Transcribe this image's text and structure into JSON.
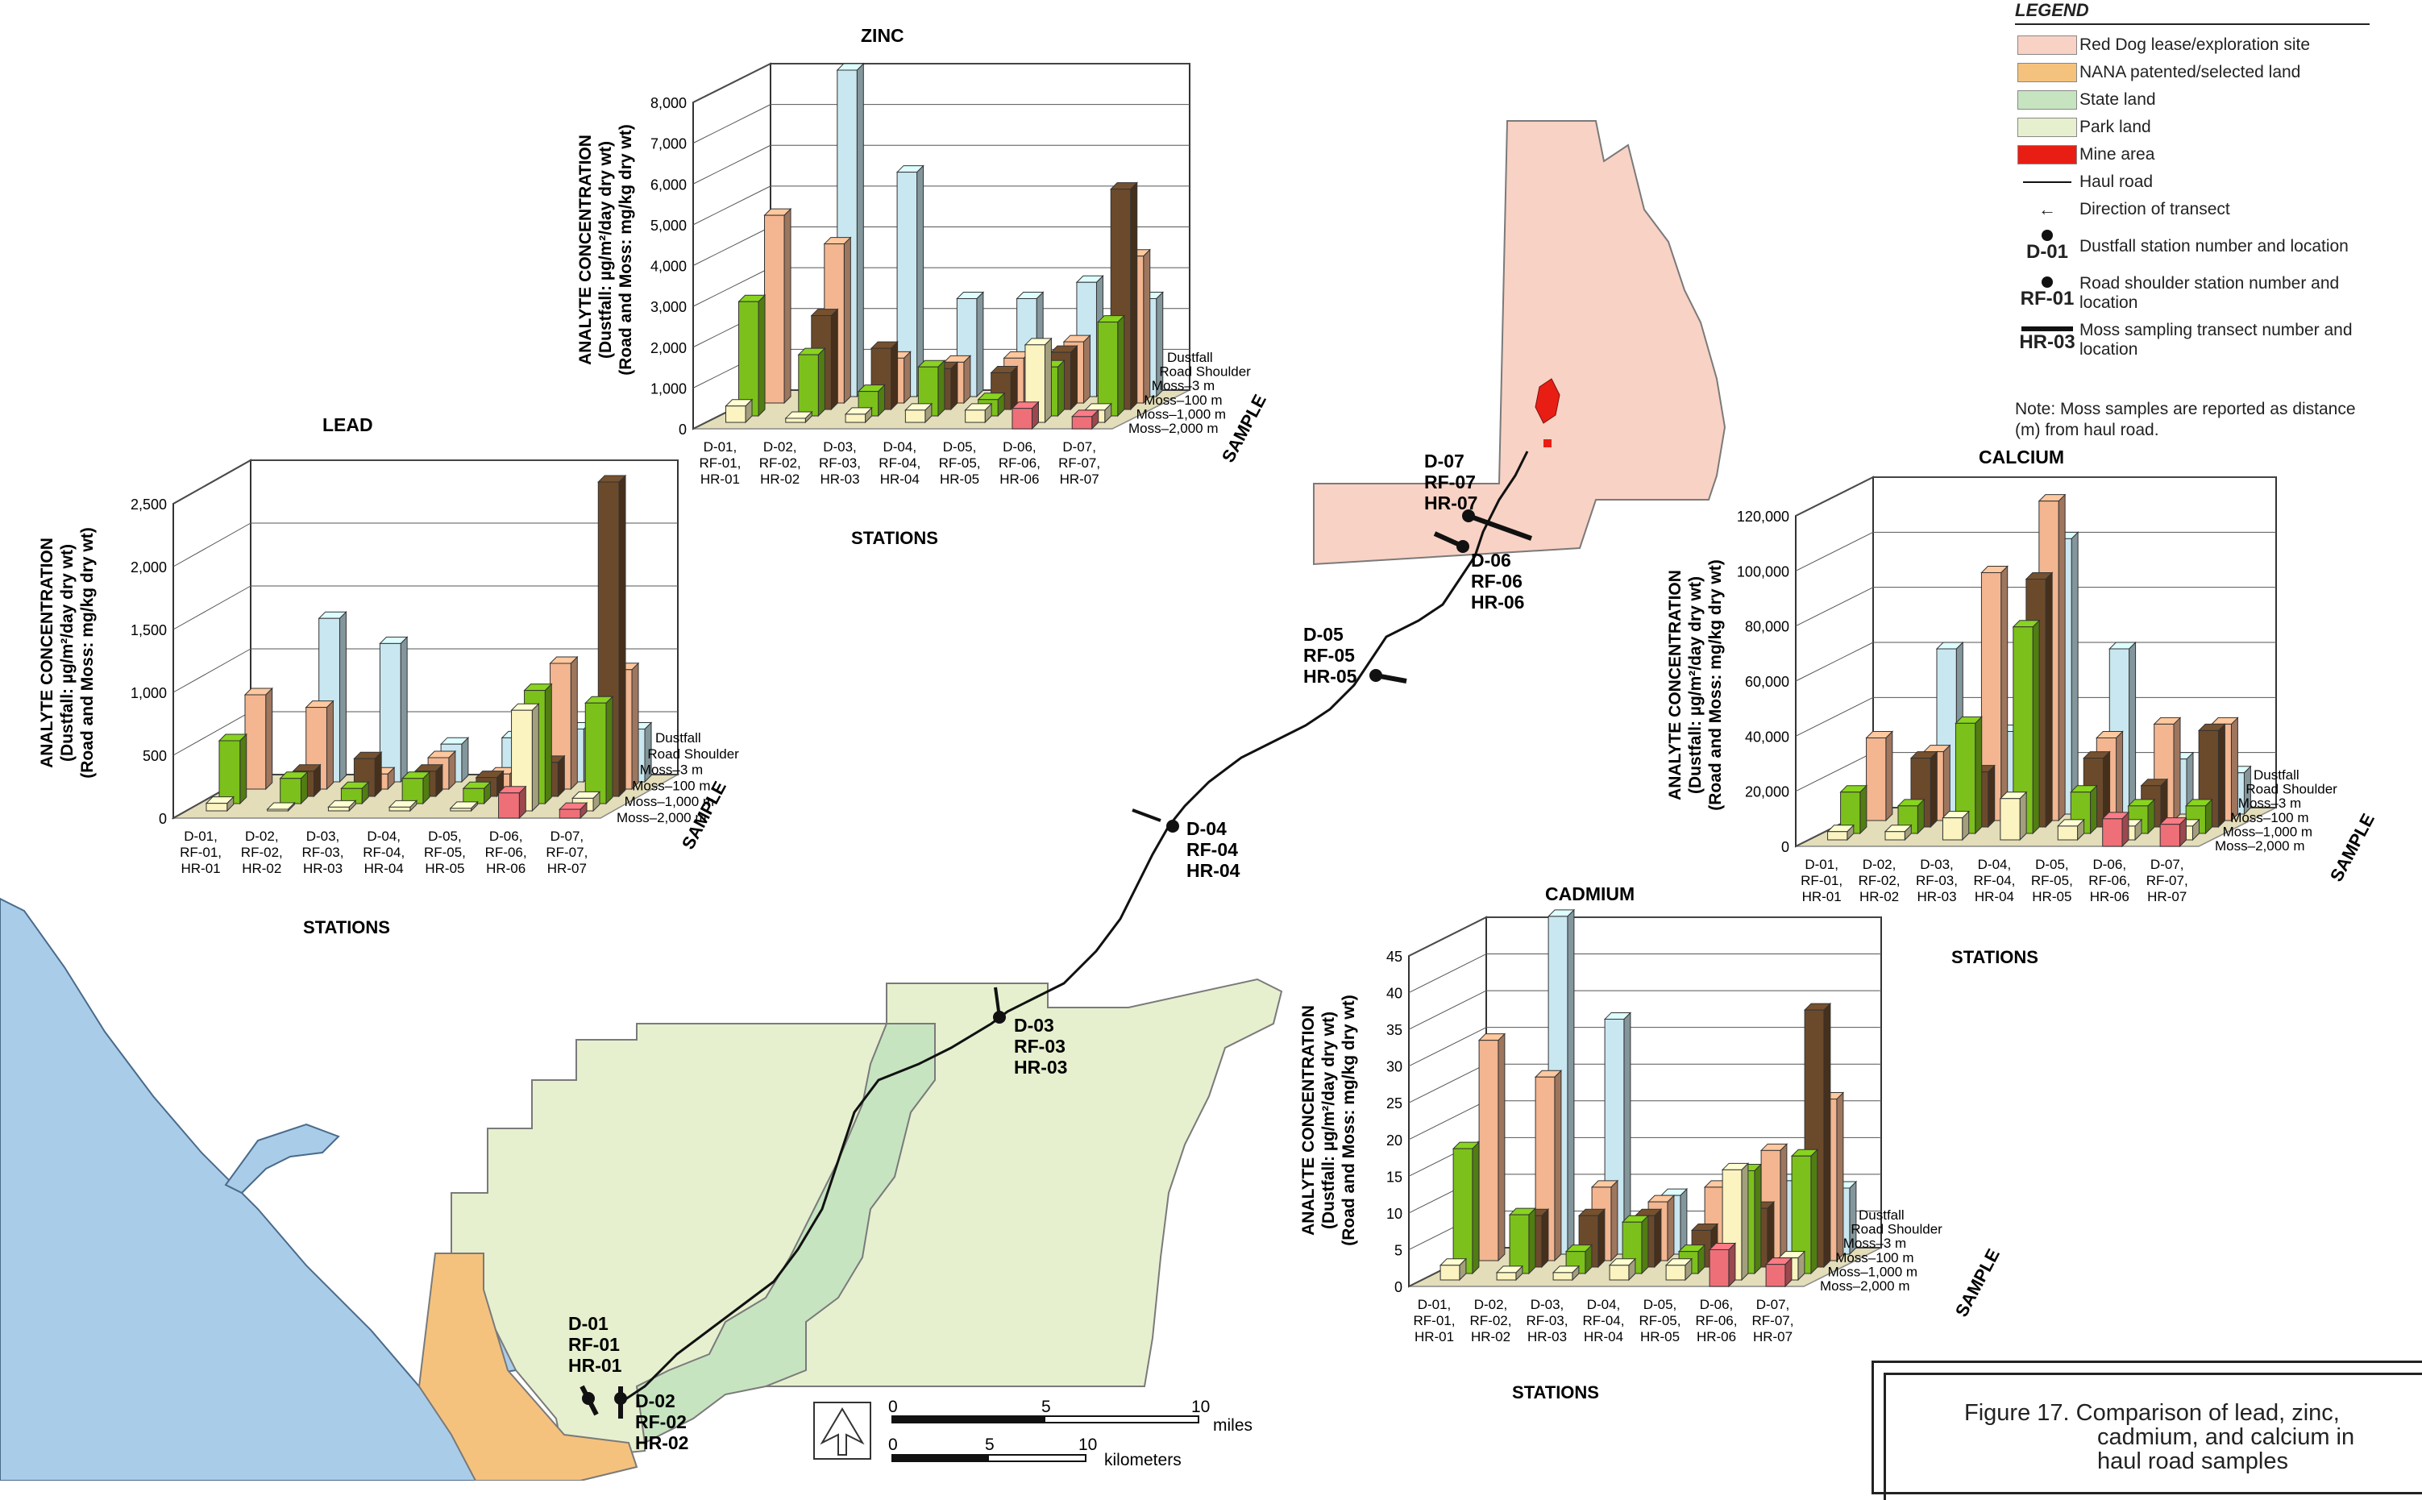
{
  "legend": {
    "title": "LEGEND",
    "items": [
      {
        "label": "Red Dog lease/exploration site",
        "color": "#f8d2c4",
        "kind": "swatch"
      },
      {
        "label": "NANA patented/selected land",
        "color": "#f5c27e",
        "kind": "swatch"
      },
      {
        "label": "State land",
        "color": "#c6e4c0",
        "kind": "swatch"
      },
      {
        "label": "Park land",
        "color": "#e6f0cf",
        "kind": "swatch"
      },
      {
        "label": "Mine area",
        "color": "#e81e14",
        "kind": "swatch"
      },
      {
        "label": "Haul road",
        "kind": "line"
      },
      {
        "label": "Direction of transect",
        "kind": "arrow"
      },
      {
        "label": "Dustfall station number and location",
        "code": "D-01",
        "kind": "dot"
      },
      {
        "label": "Road shoulder station number and location",
        "code": "RF-01",
        "kind": "dot"
      },
      {
        "label": "Moss sampling transect number and location",
        "code": "HR-03",
        "kind": "bar"
      }
    ],
    "note": "Note:  Moss samples are reported as distance (m) from haul road."
  },
  "figure_caption": [
    "Figure 17.  Comparison of lead, zinc,",
    "cadmium, and calcium in",
    "haul road samples"
  ],
  "map": {
    "station_labels": [
      [
        "D-01",
        "RF-01",
        "HR-01"
      ],
      [
        "D-02",
        "RF-02",
        "HR-02"
      ],
      [
        "D-03",
        "RF-03",
        "HR-03"
      ],
      [
        "D-04",
        "RF-04",
        "HR-04"
      ],
      [
        "D-05",
        "RF-05",
        "HR-05"
      ],
      [
        "D-06",
        "RF-06",
        "HR-06"
      ],
      [
        "D-07",
        "RF-07",
        "HR-07"
      ]
    ],
    "scale": {
      "miles_ticks": [
        "0",
        "5",
        "10"
      ],
      "miles_label": "miles",
      "km_ticks": [
        "0",
        "5",
        "10"
      ],
      "km_label": "kilometers"
    }
  },
  "colors": {
    "dustfall": "#c9e7f0",
    "road": "#f3b690",
    "moss3": "#6b4a2b",
    "moss100": "#7cc11b",
    "moss1000": "#fbf4c0",
    "moss2000": "#ef6f78",
    "floor": "#e3ddb9"
  },
  "chart_data": [
    {
      "type": "bar",
      "title": "LEAD",
      "ylabel": [
        "ANALYTE CONCENTRATION",
        "(Dustfall: µg/m²/day dry wt)",
        "(Road and Moss: mg/kg dry wt)"
      ],
      "xlabel": "STATIONS",
      "zlabel": "SAMPLE",
      "ylim": [
        0,
        2500
      ],
      "yticks": [
        "0",
        "500",
        "1,000",
        "1,500",
        "2,000",
        "2,500"
      ],
      "categories": [
        [
          "D-01,",
          "RF-01,",
          "HR-01"
        ],
        [
          "D-02,",
          "RF-02,",
          "HR-02"
        ],
        [
          "D-03,",
          "RF-03,",
          "HR-03"
        ],
        [
          "D-04,",
          "RF-04,",
          "HR-04"
        ],
        [
          "D-05,",
          "RF-05,",
          "HR-05"
        ],
        [
          "D-06,",
          "RF-06,",
          "HR-06"
        ],
        [
          "D-07,",
          "RF-07,",
          "HR-07"
        ]
      ],
      "series": [
        {
          "name": "Dustfall",
          "values": [
            null,
            1300,
            1100,
            300,
            350,
            420,
            420
          ]
        },
        {
          "name": "Road Shoulder",
          "values": [
            750,
            650,
            120,
            250,
            120,
            1000,
            950
          ]
        },
        {
          "name": "Moss–3 m",
          "values": [
            null,
            200,
            300,
            200,
            150,
            270,
            2500
          ]
        },
        {
          "name": "Moss–100 m",
          "values": [
            500,
            200,
            120,
            200,
            120,
            900,
            800
          ]
        },
        {
          "name": "Moss–1,000 m",
          "values": [
            60,
            10,
            30,
            30,
            20,
            800,
            100
          ]
        },
        {
          "name": "Moss–2,000 m",
          "values": [
            null,
            null,
            null,
            null,
            null,
            200,
            70
          ]
        }
      ]
    },
    {
      "type": "bar",
      "title": "ZINC",
      "ylabel": [
        "ANALYTE CONCENTRATION",
        "(Dustfall: µg/m²/day dry wt)",
        "(Road and Moss: mg/kg dry wt)"
      ],
      "xlabel": "STATIONS",
      "zlabel": "SAMPLE",
      "ylim": [
        0,
        8000
      ],
      "yticks": [
        "0",
        "1,000",
        "2,000",
        "3,000",
        "4,000",
        "5,000",
        "6,000",
        "7,000",
        "8,000"
      ],
      "categories": [
        [
          "D-01,",
          "RF-01,",
          "HR-01"
        ],
        [
          "D-02,",
          "RF-02,",
          "HR-02"
        ],
        [
          "D-03,",
          "RF-03,",
          "HR-03"
        ],
        [
          "D-04,",
          "RF-04,",
          "HR-04"
        ],
        [
          "D-05,",
          "RF-05,",
          "HR-05"
        ],
        [
          "D-06,",
          "RF-06,",
          "HR-06"
        ],
        [
          "D-07,",
          "RF-07,",
          "HR-07"
        ]
      ],
      "series": [
        {
          "name": "Dustfall",
          "values": [
            null,
            8000,
            5500,
            2400,
            2400,
            2800,
            2400
          ]
        },
        {
          "name": "Road Shoulder",
          "values": [
            4600,
            3900,
            1100,
            1000,
            1100,
            1500,
            3600
          ]
        },
        {
          "name": "Moss–3 m",
          "values": [
            null,
            2300,
            1500,
            1000,
            900,
            1400,
            5400
          ]
        },
        {
          "name": "Moss–100 m",
          "values": [
            2800,
            1500,
            600,
            1200,
            400,
            1200,
            2300
          ]
        },
        {
          "name": "Moss–1,000 m",
          "values": [
            400,
            100,
            200,
            300,
            300,
            1900,
            300
          ]
        },
        {
          "name": "Moss–2,000 m",
          "values": [
            null,
            null,
            null,
            null,
            null,
            500,
            300
          ]
        }
      ]
    },
    {
      "type": "bar",
      "title": "CALCIUM",
      "ylabel": [
        "ANALYTE CONCENTRATION",
        "(Dustfall: µg/m²/day dry wt)",
        "(Road and Moss: mg/kg dry wt)"
      ],
      "xlabel": "STATIONS",
      "zlabel": "SAMPLE",
      "ylim": [
        0,
        120000
      ],
      "yticks": [
        "0",
        "20,000",
        "40,000",
        "60,000",
        "80,000",
        "100,000",
        "120,000"
      ],
      "categories": [
        [
          "D-01,",
          "RF-01,",
          "HR-01"
        ],
        [
          "D-02,",
          "RF-02,",
          "HR-02"
        ],
        [
          "D-03,",
          "RF-03,",
          "HR-03"
        ],
        [
          "D-04,",
          "RF-04,",
          "HR-04"
        ],
        [
          "D-05,",
          "RF-05,",
          "HR-05"
        ],
        [
          "D-06,",
          "RF-06,",
          "HR-06"
        ],
        [
          "D-07,",
          "RF-07,",
          "HR-07"
        ]
      ],
      "series": [
        {
          "name": "Dustfall",
          "values": [
            null,
            60000,
            30000,
            100000,
            60000,
            20000,
            15000
          ]
        },
        {
          "name": "Road Shoulder",
          "values": [
            30000,
            25000,
            90000,
            116000,
            30000,
            35000,
            35000
          ]
        },
        {
          "name": "Moss–3 m",
          "values": [
            null,
            25000,
            20000,
            90000,
            25000,
            15000,
            35000
          ]
        },
        {
          "name": "Moss–100 m",
          "values": [
            15000,
            10000,
            40000,
            75000,
            15000,
            10000,
            10000
          ]
        },
        {
          "name": "Moss–1,000 m",
          "values": [
            3000,
            3000,
            8000,
            15000,
            5000,
            5000,
            5000
          ]
        },
        {
          "name": "Moss–2,000 m",
          "values": [
            null,
            null,
            null,
            null,
            null,
            10000,
            8000
          ]
        }
      ]
    },
    {
      "type": "bar",
      "title": "CADMIUM",
      "ylabel": [
        "ANALYTE CONCENTRATION",
        "(Dustfall: µg/m²/day dry wt)",
        "(Road and Moss: mg/kg dry wt)"
      ],
      "xlabel": "STATIONS",
      "zlabel": "SAMPLE",
      "ylim": [
        0,
        45
      ],
      "yticks": [
        "0",
        "5",
        "10",
        "15",
        "20",
        "25",
        "30",
        "35",
        "40",
        "45"
      ],
      "categories": [
        [
          "D-01,",
          "RF-01,",
          "HR-01"
        ],
        [
          "D-02,",
          "RF-02,",
          "HR-02"
        ],
        [
          "D-03,",
          "RF-03,",
          "HR-03"
        ],
        [
          "D-04,",
          "RF-04,",
          "HR-04"
        ],
        [
          "D-05,",
          "RF-05,",
          "HR-05"
        ],
        [
          "D-06,",
          "RF-06,",
          "HR-06"
        ],
        [
          "D-07,",
          "RF-07,",
          "HR-07"
        ]
      ],
      "series": [
        {
          "name": "Dustfall",
          "values": [
            null,
            46,
            32,
            8,
            8,
            10,
            9
          ]
        },
        {
          "name": "Road Shoulder",
          "values": [
            30,
            25,
            10,
            8,
            10,
            15,
            22
          ]
        },
        {
          "name": "Moss–3 m",
          "values": [
            null,
            7,
            7,
            7,
            5,
            8,
            35
          ]
        },
        {
          "name": "Moss–100 m",
          "values": [
            17,
            8,
            3,
            7,
            3,
            14,
            16
          ]
        },
        {
          "name": "Moss–1,000 m",
          "values": [
            2,
            1,
            1,
            2,
            2,
            15,
            3
          ]
        },
        {
          "name": "Moss–2,000 m",
          "values": [
            null,
            null,
            null,
            null,
            null,
            5,
            3
          ]
        }
      ]
    }
  ]
}
